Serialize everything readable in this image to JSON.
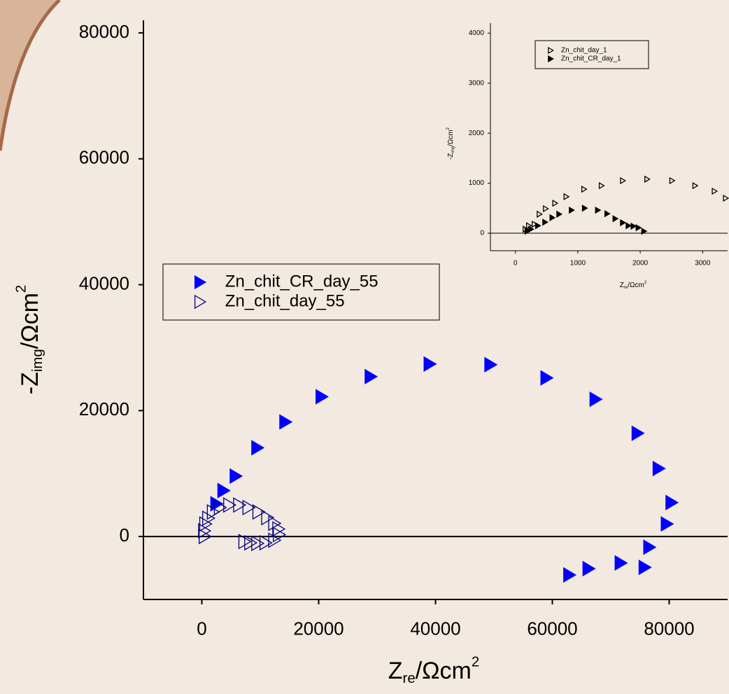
{
  "chart_data": [
    {
      "type": "scatter",
      "x_label": {
        "main": "Z",
        "sub": "re",
        "rest": "/Ωcm",
        "sup": "2"
      },
      "y_label": {
        "main": "-Z",
        "sub": "img",
        "rest": "/Ωcm",
        "sup": "2"
      },
      "xlim": [
        -10000,
        90000
      ],
      "xticks": [
        0,
        20000,
        40000,
        60000,
        80000
      ],
      "ylim": [
        -10000,
        82000
      ],
      "yticks": [
        0,
        20000,
        40000,
        60000,
        80000
      ],
      "zero_line": true,
      "legend": "center-left",
      "series": [
        {
          "name": "Zn_chit_CR_day_55",
          "color": "#0000ff",
          "filled": true,
          "x": [
            2500,
            3700,
            5800,
            9500,
            14300,
            20500,
            28900,
            39000,
            49400,
            59000,
            67400,
            74600,
            78200,
            80400,
            79600,
            76600,
            75800,
            71700,
            66200,
            62900
          ],
          "values": [
            5200,
            7300,
            9600,
            14100,
            18200,
            22200,
            25400,
            27400,
            27300,
            25200,
            21800,
            16400,
            10800,
            5400,
            2000,
            -1700,
            -4900,
            -4200,
            -5100,
            -6100
          ]
        },
        {
          "name": "Zn_chit_day_55",
          "color": "#000080",
          "filled": false,
          "x": [
            500,
            400,
            600,
            1100,
            1900,
            3100,
            4700,
            6400,
            8000,
            9700,
            11200,
            12400,
            13100,
            13200,
            12400,
            10900,
            9500,
            8300,
            7300
          ],
          "values": [
            0,
            900,
            2000,
            2900,
            3900,
            4600,
            5000,
            5000,
            4600,
            3900,
            3000,
            2100,
            1200,
            300,
            -600,
            -1000,
            -1100,
            -1000,
            -800
          ]
        }
      ]
    },
    {
      "type": "scatter",
      "x_label": {
        "main": "Z",
        "sub": "re",
        "rest": "/Ωcm",
        "sup": "2"
      },
      "y_label": {
        "main": "-Z",
        "sub": "img",
        "rest": "/Ωcm",
        "sup": "2"
      },
      "xlim": [
        -400,
        3400
      ],
      "xticks": [
        0,
        1000,
        2000,
        3000
      ],
      "ylim": [
        -350,
        4200
      ],
      "yticks": [
        0,
        1000,
        2000,
        3000,
        4000
      ],
      "zero_line": true,
      "legend": "upper-left",
      "series": [
        {
          "name": "Zn_chit_day_1",
          "color": "#000000",
          "filled": false,
          "x": [
            160,
            215,
            305,
            385,
            485,
            635,
            815,
            1100,
            1380,
            1720,
            2110,
            2510,
            2880,
            3190,
            3370
          ],
          "values": [
            80,
            150,
            180,
            380,
            490,
            600,
            730,
            880,
            950,
            1050,
            1080,
            1050,
            950,
            840,
            700
          ]
        },
        {
          "name": "Zn_chit_CR_day_1",
          "color": "#000000",
          "filled": true,
          "x": [
            190,
            250,
            360,
            475,
            590,
            700,
            900,
            1110,
            1320,
            1470,
            1600,
            1720,
            1810,
            1890,
            1970,
            2060
          ],
          "values": [
            40,
            80,
            150,
            220,
            310,
            380,
            460,
            500,
            460,
            390,
            290,
            210,
            150,
            140,
            110,
            40
          ]
        }
      ]
    }
  ]
}
